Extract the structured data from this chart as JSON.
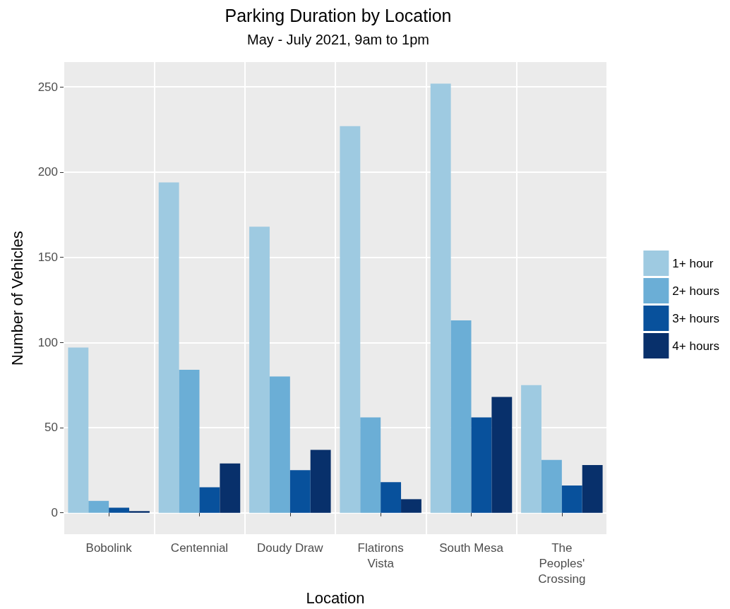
{
  "chart_data": {
    "type": "bar",
    "title": "Parking Duration by Location",
    "subtitle": "May - July 2021, 9am to 1pm",
    "xlabel": "Location",
    "ylabel": "Number of Vehicles",
    "categories": [
      "Bobolink",
      "Centennial",
      "Doudy Draw",
      "Flatirons\nVista",
      "South Mesa",
      "The\nPeoples'\nCrossing"
    ],
    "series": [
      {
        "name": "1+ hour",
        "color": "#9ecae1",
        "values": [
          97,
          194,
          168,
          227,
          252,
          75
        ]
      },
      {
        "name": "2+ hours",
        "color": "#6baed6",
        "values": [
          7,
          84,
          80,
          56,
          113,
          31
        ]
      },
      {
        "name": "3+ hours",
        "color": "#08519c",
        "values": [
          3,
          15,
          25,
          18,
          56,
          16
        ]
      },
      {
        "name": "4+ hours",
        "color": "#08306b",
        "values": [
          1,
          29,
          37,
          8,
          68,
          28
        ]
      }
    ],
    "ylim": [
      -12.6,
      264.6
    ],
    "yticks": [
      0,
      50,
      100,
      150,
      200,
      250
    ],
    "grid": true,
    "legend": "right"
  }
}
